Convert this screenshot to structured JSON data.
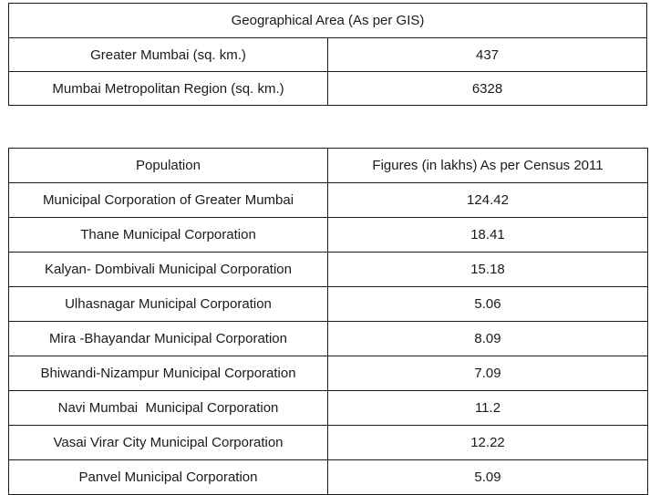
{
  "geographical_area": {
    "title": "Geographical Area (As per GIS)",
    "rows": [
      {
        "label": "Greater Mumbai (sq. km.)",
        "value": "437"
      },
      {
        "label": "Mumbai Metropolitan Region (sq. km.)",
        "value": "6328"
      }
    ]
  },
  "population": {
    "headers": [
      "Population",
      "Figures (in lakhs) As per Census 2011"
    ],
    "rows": [
      {
        "label": "Municipal Corporation of Greater Mumbai",
        "value": "124.42"
      },
      {
        "label": "Thane Municipal Corporation",
        "value": "18.41"
      },
      {
        "label": "Kalyan- Dombivali Municipal Corporation",
        "value": "15.18"
      },
      {
        "label": "Ulhasnagar Municipal Corporation",
        "value": "5.06"
      },
      {
        "label": "Mira -Bhayandar Municipal Corporation",
        "value": "8.09"
      },
      {
        "label": "Bhiwandi-Nizampur Municipal Corporation",
        "value": "7.09"
      },
      {
        "label": "Navi Mumbai  Municipal Corporation",
        "value": "11.2"
      },
      {
        "label": "Vasai Virar City Municipal Corporation",
        "value": "12.22"
      },
      {
        "label": "Panvel Municipal Corporation",
        "value": "5.09"
      }
    ]
  }
}
